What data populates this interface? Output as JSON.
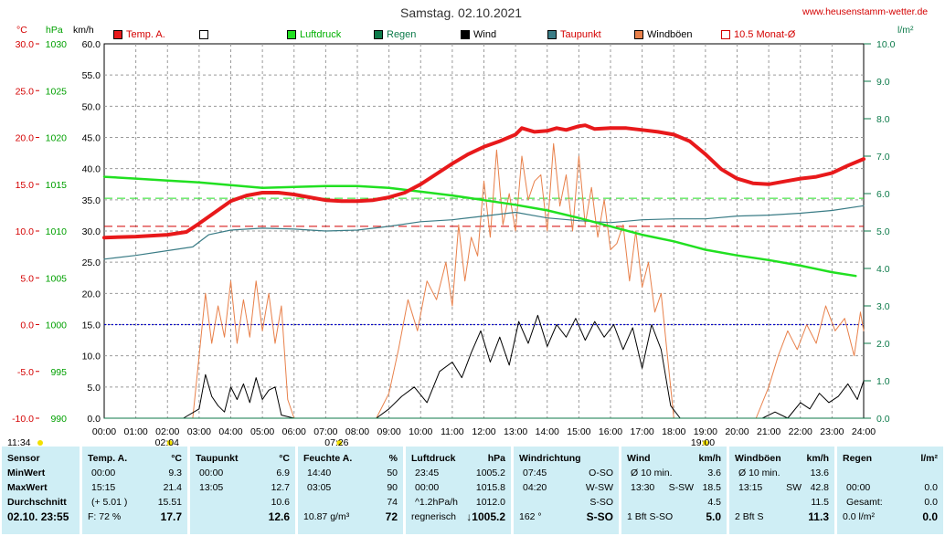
{
  "header": {
    "title": "Samstag. 02.10.2021",
    "url": "www.heusenstamm-wetter.de",
    "units": {
      "temp": "°C",
      "pressure": "hPa",
      "wind": "km/h",
      "rain": "l/m²"
    }
  },
  "legend": [
    {
      "label": "Temp. A.",
      "color": "#e8191b",
      "text_color": "#d40000"
    },
    {
      "label": "",
      "color": "#ffffff",
      "text_color": "#000000"
    },
    {
      "label": "Luftdruck",
      "color": "#21e021",
      "text_color": "#00b000"
    },
    {
      "label": "Regen",
      "color": "#0c7a4a",
      "text_color": "#0c7a4a"
    },
    {
      "label": "Wind",
      "color": "#000000",
      "text_color": "#000000"
    },
    {
      "label": "Taupunkt",
      "color": "#3a7c86",
      "text_color": "#d40000"
    },
    {
      "label": "Windböen",
      "color": "#e8804a",
      "text_color": "#000000"
    },
    {
      "label": "10.5 Monat-Ø",
      "color": "#ffffff",
      "text_color": "#d40000"
    }
  ],
  "axes": {
    "temp_ticks": [
      "30.0",
      "25.0",
      "20.0",
      "15.0",
      "10.0",
      "5.0",
      "0.0",
      "-5.0",
      "-10.0"
    ],
    "pressure_ticks": [
      "1030",
      "1025",
      "1020",
      "1015",
      "1010",
      "1005",
      "1000",
      "995",
      "990"
    ],
    "wind_ticks": [
      "60.0",
      "55.0",
      "50.0",
      "45.0",
      "40.0",
      "35.0",
      "30.0",
      "25.0",
      "20.0",
      "15.0",
      "10.0",
      "5.0",
      "0.0"
    ],
    "rain_ticks": [
      "10.0",
      "9.0",
      "8.0",
      "7.0",
      "6.0",
      "5.0",
      "4.0",
      "3.0",
      "2.0",
      "1.0",
      "0.0"
    ],
    "x_ticks": [
      "00:00",
      "01:00",
      "02:00",
      "03:00",
      "04:00",
      "05:00",
      "06:00",
      "07:00",
      "08:00",
      "09:00",
      "10:00",
      "11:00",
      "12:00",
      "13:00",
      "14:00",
      "15:00",
      "16:00",
      "17:00",
      "18:00",
      "19:00",
      "20:00",
      "21:00",
      "22:00",
      "23:00",
      "24:00"
    ],
    "markers": [
      {
        "label": "11:34",
        "hour": -2.6
      },
      {
        "label": "02:04",
        "hour": 2.07
      },
      {
        "label": "07:26",
        "hour": 7.43
      },
      {
        "label": "19:00",
        "hour": 19.0
      }
    ]
  },
  "chart_data": {
    "type": "line",
    "title": "Samstag. 02.10.2021",
    "x_unit": "hour",
    "xlim": [
      0,
      24
    ],
    "temp_ylim": [
      -10,
      30
    ],
    "pressure_ylim": [
      990,
      1030
    ],
    "wind_ylim": [
      0,
      60
    ],
    "rain_ylim": [
      0,
      10
    ],
    "reference_lines": [
      {
        "name": "10.5 Monat-Ø",
        "axis": "temp",
        "value": 10.5,
        "color": "#d40000",
        "style": "dashed"
      },
      {
        "name": "Luftdruck ref",
        "axis": "pressure",
        "value": 1013.5,
        "color": "#21e021",
        "style": "dashed"
      },
      {
        "name": "zero",
        "axis": "temp",
        "value": 0.0,
        "color": "#0000c8",
        "style": "dotted"
      }
    ],
    "series": [
      {
        "name": "Temp. A.",
        "axis": "temp",
        "color": "#e8191b",
        "width": 4,
        "x": [
          0,
          1,
          2,
          2.6,
          3,
          3.5,
          4,
          4.5,
          5,
          5.5,
          6,
          6.5,
          7,
          7.5,
          8,
          8.5,
          9,
          9.5,
          10,
          10.5,
          11,
          11.5,
          12,
          12.5,
          13,
          13.2,
          13.6,
          14,
          14.3,
          14.6,
          15,
          15.2,
          15.5,
          16,
          16.5,
          17,
          17.5,
          18,
          18.5,
          19,
          19.5,
          20,
          20.5,
          21,
          21.5,
          22,
          22.5,
          23,
          23.5,
          24
        ],
        "y": [
          9.3,
          9.4,
          9.6,
          9.9,
          10.8,
          12.0,
          13.2,
          13.8,
          14.1,
          14.1,
          13.9,
          13.6,
          13.3,
          13.2,
          13.2,
          13.3,
          13.6,
          14.1,
          15.0,
          16.1,
          17.2,
          18.2,
          19.0,
          19.6,
          20.3,
          21.0,
          20.6,
          20.7,
          21.0,
          20.8,
          21.2,
          21.3,
          20.9,
          21.0,
          21.0,
          20.8,
          20.6,
          20.3,
          19.6,
          18.2,
          16.6,
          15.6,
          15.1,
          15.0,
          15.3,
          15.6,
          15.8,
          16.2,
          17.0,
          17.7
        ]
      },
      {
        "name": "Luftdruck",
        "axis": "pressure",
        "color": "#21e021",
        "width": 2.5,
        "x": [
          0,
          1,
          2,
          3,
          4,
          5,
          6,
          7,
          8,
          9,
          10,
          11,
          12,
          13,
          14,
          15,
          16,
          17,
          18,
          19,
          20,
          21,
          22,
          23,
          23.75
        ],
        "y": [
          1015.8,
          1015.6,
          1015.4,
          1015.2,
          1014.9,
          1014.6,
          1014.7,
          1014.8,
          1014.8,
          1014.6,
          1014.2,
          1013.8,
          1013.3,
          1012.8,
          1012.2,
          1011.4,
          1010.5,
          1009.6,
          1008.9,
          1008.0,
          1007.4,
          1006.9,
          1006.3,
          1005.6,
          1005.2
        ]
      },
      {
        "name": "Taupunkt",
        "axis": "temp",
        "color": "#3a7c86",
        "width": 1.2,
        "x": [
          0,
          1,
          2,
          2.8,
          3.3,
          4,
          5,
          6,
          7,
          8,
          9,
          10,
          11,
          12,
          13,
          14,
          15,
          16,
          17,
          18,
          19,
          20,
          21,
          22,
          23,
          24
        ],
        "y": [
          7.0,
          7.4,
          7.9,
          8.3,
          9.6,
          10.1,
          10.3,
          10.2,
          10.0,
          10.1,
          10.5,
          11.0,
          11.2,
          11.6,
          12.0,
          11.4,
          11.1,
          10.9,
          11.2,
          11.3,
          11.3,
          11.6,
          11.7,
          11.9,
          12.2,
          12.7
        ]
      },
      {
        "name": "Wind",
        "axis": "wind",
        "color": "#000000",
        "width": 1,
        "x": [
          2.5,
          3.0,
          3.2,
          3.4,
          3.6,
          3.8,
          4.0,
          4.2,
          4.4,
          4.6,
          4.8,
          5.0,
          5.2,
          5.4,
          5.6,
          6.0,
          8.6,
          9.0,
          9.4,
          9.8,
          10.2,
          10.6,
          11.0,
          11.3,
          11.6,
          11.9,
          12.2,
          12.5,
          12.8,
          13.1,
          13.4,
          13.7,
          14.0,
          14.3,
          14.6,
          14.9,
          15.2,
          15.5,
          15.8,
          16.1,
          16.4,
          16.7,
          17.0,
          17.3,
          17.6,
          17.9,
          18.2,
          20.8,
          21.2,
          21.6,
          22.0,
          22.3,
          22.6,
          22.9,
          23.2,
          23.5,
          23.8,
          24.0
        ],
        "y": [
          0,
          1.5,
          7.0,
          3.5,
          2.0,
          1.0,
          5.0,
          3.0,
          5.5,
          2.5,
          6.5,
          3.0,
          4.5,
          5.0,
          0.5,
          0,
          0,
          1.5,
          3.5,
          5.0,
          2.5,
          7.5,
          9.0,
          6.5,
          10.5,
          14.0,
          9.0,
          13.0,
          8.5,
          15.5,
          12.0,
          16.5,
          11.5,
          15.0,
          13.0,
          16.0,
          12.5,
          15.5,
          13.0,
          15.0,
          11.0,
          14.5,
          8.0,
          15.0,
          11.0,
          2.0,
          0,
          0,
          1.0,
          0,
          2.5,
          1.5,
          4.0,
          2.5,
          3.5,
          5.5,
          3.0,
          6.0
        ]
      },
      {
        "name": "Windböen",
        "axis": "wind",
        "color": "#e8804a",
        "width": 1,
        "x": [
          2.5,
          2.8,
          3.0,
          3.2,
          3.4,
          3.6,
          3.8,
          4.0,
          4.2,
          4.4,
          4.6,
          4.8,
          5.0,
          5.2,
          5.4,
          5.6,
          5.8,
          6.0,
          6.2,
          8.6,
          9.0,
          9.3,
          9.6,
          9.9,
          10.2,
          10.5,
          10.8,
          11.0,
          11.2,
          11.4,
          11.6,
          11.8,
          12.0,
          12.2,
          12.4,
          12.6,
          12.8,
          13.0,
          13.2,
          13.4,
          13.6,
          13.8,
          14.0,
          14.2,
          14.4,
          14.6,
          14.8,
          15.0,
          15.2,
          15.4,
          15.6,
          15.8,
          16.0,
          16.2,
          16.4,
          16.6,
          16.8,
          17.0,
          17.2,
          17.4,
          17.6,
          17.8,
          18.0,
          18.2,
          18.4,
          20.6,
          21.0,
          21.3,
          21.6,
          21.9,
          22.2,
          22.5,
          22.8,
          23.1,
          23.4,
          23.7,
          23.9,
          24.0
        ],
        "y": [
          0,
          0,
          10,
          20,
          12,
          18,
          13,
          22,
          12,
          19,
          13,
          22,
          14,
          20,
          12,
          18,
          3,
          0,
          0,
          0,
          4,
          11,
          19,
          14,
          22,
          19,
          25,
          18,
          31,
          22,
          29,
          26,
          38,
          29,
          43,
          31,
          36,
          30,
          42,
          35,
          38,
          39,
          30,
          44,
          34,
          39,
          30,
          42,
          31,
          37,
          29,
          35,
          27,
          28,
          31,
          22,
          30,
          21,
          25,
          17,
          20,
          10,
          0,
          0,
          0,
          0,
          5,
          10,
          14,
          11,
          15,
          12,
          18,
          14,
          16,
          10,
          17,
          14
        ]
      },
      {
        "name": "Regen",
        "axis": "rain",
        "color": "#0c7a4a",
        "width": 1,
        "x": [
          0,
          24
        ],
        "y": [
          0,
          0
        ]
      }
    ]
  },
  "table": {
    "sensor": {
      "header": "Sensor",
      "rows": [
        "MinWert",
        "MaxWert",
        "Durchschnitt"
      ],
      "footer": "02.10. 23:55"
    },
    "temp": {
      "header": "Temp. A.",
      "unit": "°C",
      "rows": [
        [
          "00:00",
          "9.3"
        ],
        [
          "15:15",
          "21.4"
        ],
        [
          "(+ 5.01 )",
          "15.51"
        ]
      ],
      "footer": [
        "F: 72 %",
        "17.7"
      ]
    },
    "dew": {
      "header": "Taupunkt",
      "unit": "°C",
      "rows": [
        [
          "00:00",
          "6.9"
        ],
        [
          "13:05",
          "12.7"
        ],
        [
          "",
          "10.6"
        ]
      ],
      "footer": [
        "",
        "12.6"
      ]
    },
    "humidity": {
      "header": "Feuchte A.",
      "unit": "%",
      "rows": [
        [
          "14:40",
          "50"
        ],
        [
          "03:05",
          "90"
        ],
        [
          "",
          "74"
        ]
      ],
      "footer": [
        "10.87 g/m³",
        "72"
      ]
    },
    "pressure": {
      "header": "Luftdruck",
      "unit": "hPa",
      "rows": [
        [
          "23:45",
          "1005.2"
        ],
        [
          "00:00",
          "1015.8"
        ],
        [
          "^1.2hPa/h",
          "1012.0"
        ]
      ],
      "footer": [
        "regnerisch",
        "↓1005.2"
      ]
    },
    "winddir": {
      "header": "Windrichtung",
      "rows": [
        [
          "07:45",
          "O-SO"
        ],
        [
          "04:20",
          "W-SW"
        ],
        [
          "",
          "S-SO"
        ]
      ],
      "footer": [
        "162 °",
        "S-SO"
      ]
    },
    "wind": {
      "header": "Wind",
      "unit": "km/h",
      "rows": [
        [
          "Ø 10 min.",
          "",
          "3.6"
        ],
        [
          "13:30",
          "S-SW",
          "18.5"
        ],
        [
          "",
          "",
          "4.5"
        ]
      ],
      "footer": [
        "1 Bft S-SO",
        "5.0"
      ]
    },
    "gust": {
      "header": "Windböen",
      "unit": "km/h",
      "rows": [
        [
          "Ø 10 min.",
          "",
          "13.6"
        ],
        [
          "13:15",
          "SW",
          "42.8"
        ],
        [
          "",
          "",
          "11.5"
        ]
      ],
      "footer": [
        "2 Bft S",
        "11.3"
      ]
    },
    "rain": {
      "header": "Regen",
      "unit": "l/m²",
      "rows": [
        [
          "",
          "",
          ""
        ],
        [
          "00:00",
          "",
          "0.0"
        ],
        [
          "Gesamt:",
          "",
          "0.0"
        ]
      ],
      "footer": [
        "0.0 l/m²",
        "0.0"
      ]
    }
  }
}
